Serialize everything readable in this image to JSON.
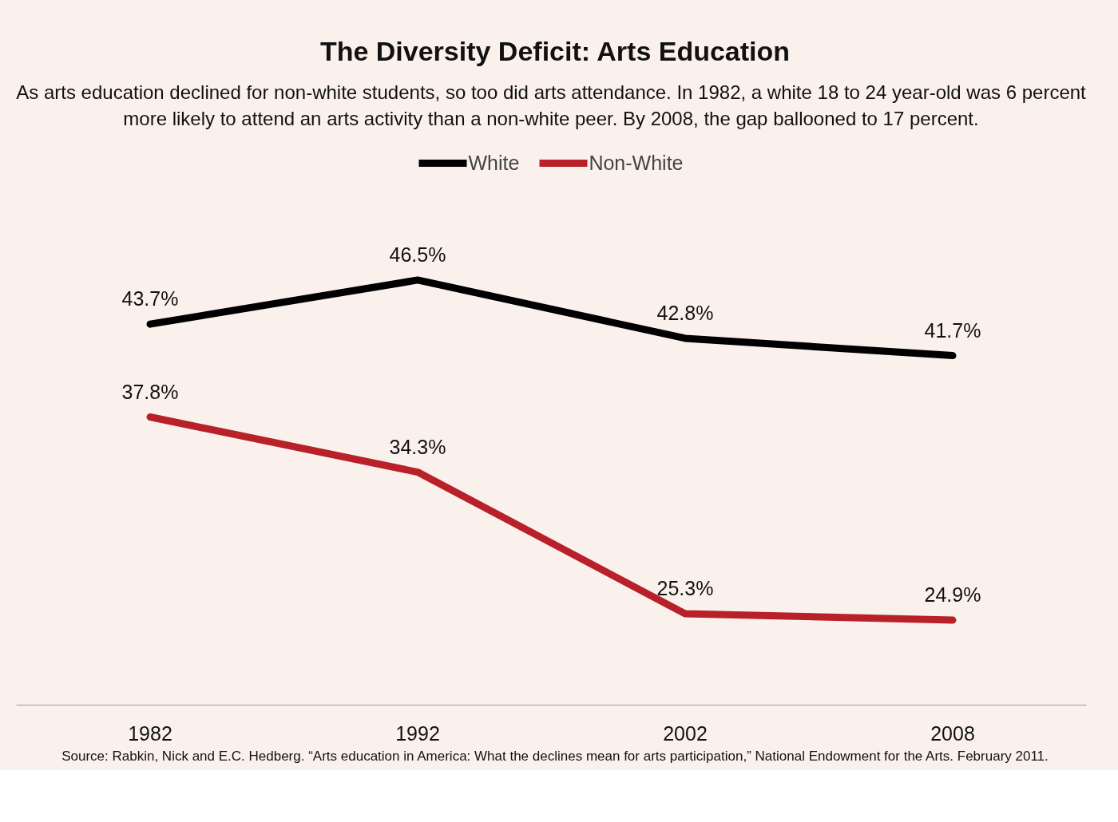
{
  "chart_data": {
    "type": "line",
    "title": "The Diversity Deficit: Arts Education",
    "subtitle": "As arts education declined for non-white students, so too did arts attendance. In 1982, a white 18 to 24 year-old was 6 percent more likely to attend an arts activity than a non-white peer. By 2008, the gap ballooned to 17 percent.",
    "categories": [
      "1982",
      "1992",
      "2002",
      "2008"
    ],
    "series": [
      {
        "name": "White",
        "color": "#000000",
        "values": [
          43.7,
          46.5,
          42.8,
          41.7
        ],
        "value_labels": [
          "43.7%",
          "46.5%",
          "42.8%",
          "41.7%"
        ]
      },
      {
        "name": "Non-White",
        "color": "#b8202a",
        "values": [
          37.8,
          34.3,
          25.3,
          24.9
        ],
        "value_labels": [
          "37.8%",
          "34.3%",
          "25.3%",
          "24.9%"
        ]
      }
    ],
    "legend": "top",
    "grid": false,
    "tick_labels": "x",
    "line_style": "solid",
    "annotations": [
      "Source: Rabkin, Nick and E.C. Hedberg. “Arts education in America: What the declines mean for arts participation,” National Endowment for the Arts. February 2011."
    ]
  }
}
